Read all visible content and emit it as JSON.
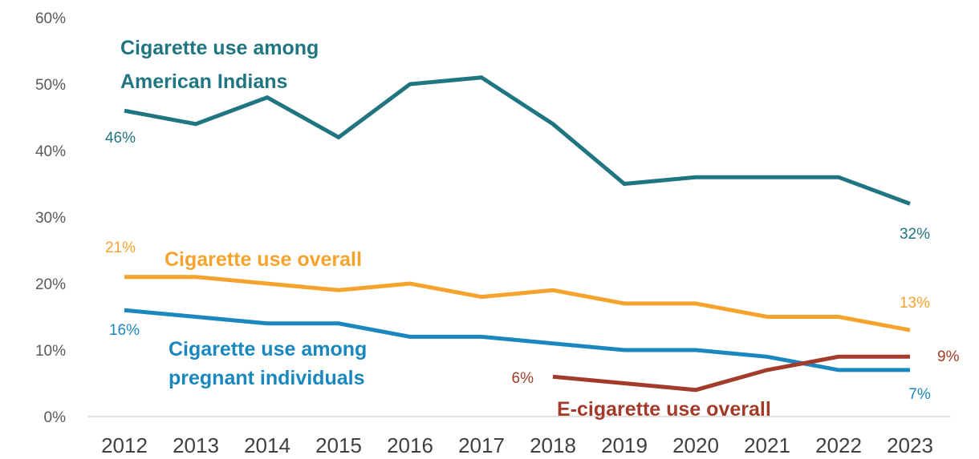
{
  "chart_data": {
    "type": "line",
    "title": "",
    "xlabel": "",
    "ylabel": "",
    "ylim": [
      0,
      60
    ],
    "yticks": [
      0,
      10,
      20,
      30,
      40,
      50,
      60
    ],
    "ytick_labels": [
      "0%",
      "10%",
      "20%",
      "30%",
      "40%",
      "50%",
      "60%"
    ],
    "grid": false,
    "legend": "inline labels",
    "categories": [
      "2012",
      "2013",
      "2014",
      "2015",
      "2016",
      "2017",
      "2018",
      "2019",
      "2020",
      "2021",
      "2022",
      "2023"
    ],
    "series": [
      {
        "name": "Cigarette use among American Indians",
        "label_lines": [
          "Cigarette use among",
          "American Indians"
        ],
        "color": "#1F7580",
        "values": [
          46,
          44,
          48,
          42,
          50,
          51,
          44,
          35,
          36,
          36,
          36,
          32
        ],
        "start_label": "46%",
        "end_label": "32%"
      },
      {
        "name": "Cigarette use overall",
        "label_lines": [
          "Cigarette use overall"
        ],
        "color": "#F5A32D",
        "values": [
          21,
          21,
          20,
          19,
          20,
          18,
          19,
          17,
          17,
          15,
          15,
          13
        ],
        "start_label": "21%",
        "end_label": "13%"
      },
      {
        "name": "Cigarette use among pregnant individuals",
        "label_lines": [
          "Cigarette use among",
          "pregnant individuals"
        ],
        "color": "#1B87BF",
        "values": [
          16,
          15,
          14,
          14,
          12,
          12,
          11,
          10,
          10,
          9,
          7,
          7
        ],
        "start_label": "16%",
        "end_label": "7%"
      },
      {
        "name": "E-cigarette use overall",
        "label_lines": [
          "E-cigarette use overall"
        ],
        "color": "#A23B2A",
        "values": [
          null,
          null,
          null,
          null,
          null,
          null,
          6,
          5,
          4,
          7,
          9,
          9
        ],
        "start_label": "6%",
        "end_label": "9%"
      }
    ]
  }
}
